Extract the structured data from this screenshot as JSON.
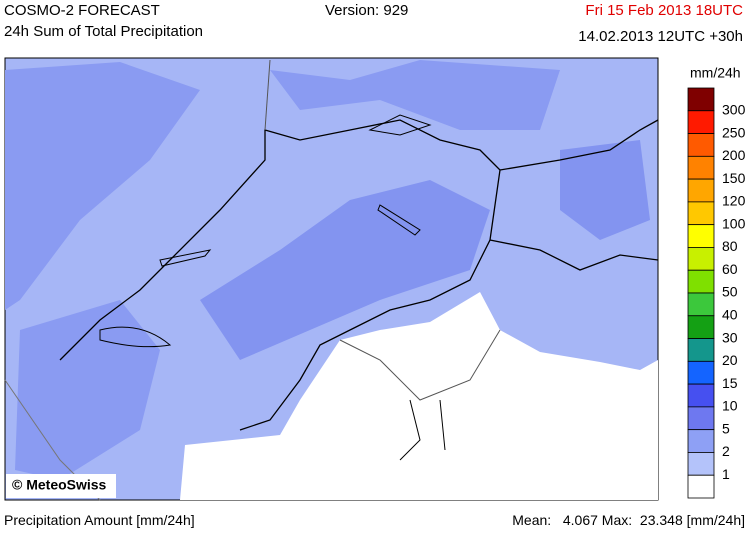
{
  "header": {
    "title": "COSMO-2 FORECAST",
    "subtitle": "24h Sum of Total Precipitation",
    "version": "Version: 929",
    "valid_time": "Fri 15 Feb 2013 18UTC",
    "run": "14.02.2013 12UTC +30h"
  },
  "legend": {
    "unit": "mm/24h",
    "colors": [
      "#7f0000",
      "#ff1a00",
      "#ff5a00",
      "#ff8200",
      "#ffa600",
      "#ffc800",
      "#ffff00",
      "#c8f000",
      "#7fe000",
      "#3cc83c",
      "#14a014",
      "#14968c",
      "#1464ff",
      "#4650f0",
      "#6e78f0",
      "#8ea0f5",
      "#b4c3fa",
      "#ffffff"
    ],
    "labels": [
      "300",
      "250",
      "200",
      "150",
      "120",
      "100",
      "80",
      "60",
      "50",
      "40",
      "30",
      "20",
      "15",
      "10",
      "5",
      "2",
      "1"
    ]
  },
  "credit": "© MeteoSwiss",
  "footer": {
    "caption": "Precipitation Amount [mm/24h]",
    "mean_label": "Mean:",
    "mean": "4.067",
    "max_label": "Max:",
    "max": "23.348",
    "unit": "[mm/24h]"
  }
}
